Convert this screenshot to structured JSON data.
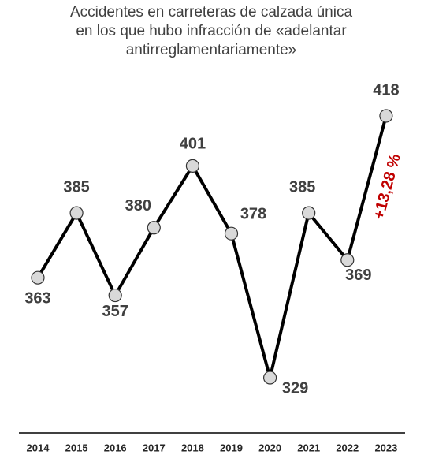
{
  "chart_data": {
    "type": "line",
    "title": [
      "Accidentes en carreteras de calzada única",
      "en los que hubo infracción de «adelantar",
      "antirreglamentariamente»"
    ],
    "categories": [
      "2014",
      "2015",
      "2016",
      "2017",
      "2018",
      "2019",
      "2020",
      "2021",
      "2022",
      "2023"
    ],
    "values": [
      363,
      385,
      357,
      380,
      401,
      378,
      329,
      385,
      369,
      418
    ],
    "color": "#000000",
    "marker_color": "#d9d9d9",
    "ylim": [
      320,
      430
    ],
    "annotation": "+13,28 %",
    "annotation_color": "#c00000"
  }
}
